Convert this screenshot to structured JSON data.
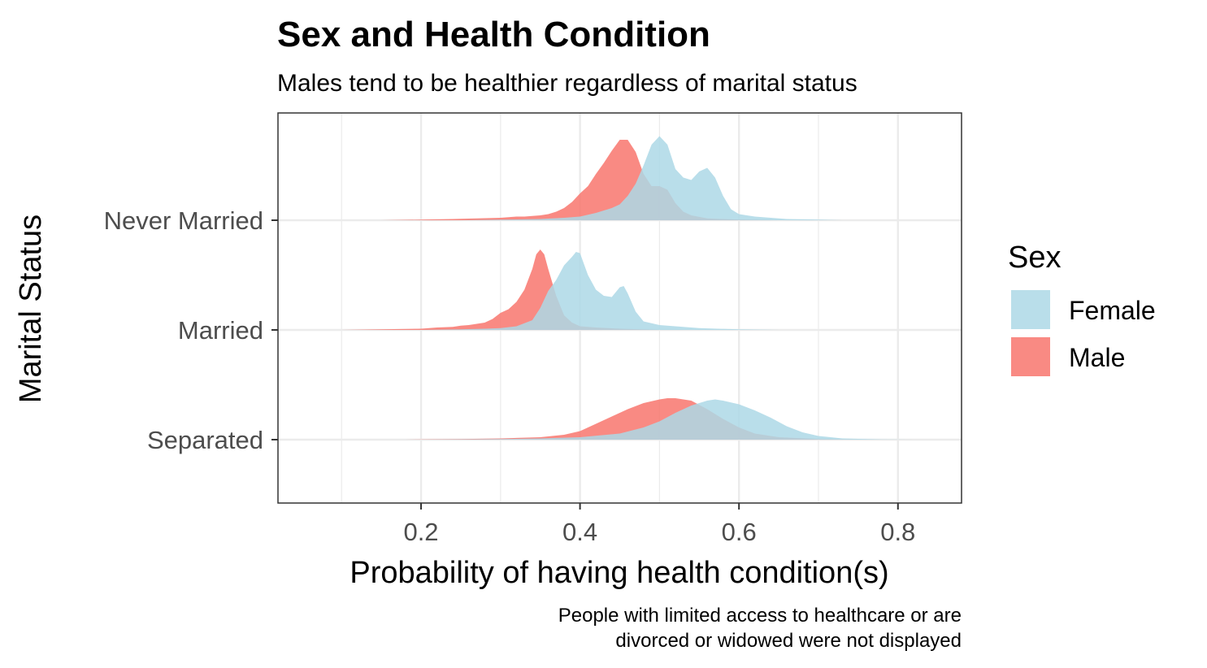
{
  "chart_data": {
    "type": "area",
    "subtype": "ridgeline-density",
    "title": "Sex and Health Condition",
    "subtitle": "Males tend to be healthier regardless of marital status",
    "xlabel": "Probability of having health condition(s)",
    "ylabel": "Marital Status",
    "caption_lines": [
      "People with limited access to healthcare or are",
      "divorced or widowed were not displayed"
    ],
    "xlim": [
      0.02,
      0.88
    ],
    "x_ticks": [
      0.2,
      0.4,
      0.6,
      0.8
    ],
    "x_tick_labels": [
      "0.2",
      "0.4",
      "0.6",
      "0.8"
    ],
    "x_minor_grid": [
      0.1,
      0.3,
      0.5,
      0.7
    ],
    "categories": [
      "Separated",
      "Married",
      "Never Married"
    ],
    "grid": true,
    "legend": {
      "title": "Sex",
      "position": "right",
      "entries": [
        {
          "label": "Female",
          "color": "#ADD8E6"
        },
        {
          "label": "Male",
          "color": "#F8766D"
        }
      ]
    },
    "fill_opacity": 0.85,
    "series": [
      {
        "category": "Never Married",
        "name": "Male",
        "color": "#F8766D",
        "points": [
          [
            0.15,
            0
          ],
          [
            0.2,
            0.005
          ],
          [
            0.24,
            0.01
          ],
          [
            0.27,
            0.015
          ],
          [
            0.3,
            0.02
          ],
          [
            0.31,
            0.025
          ],
          [
            0.32,
            0.03
          ],
          [
            0.33,
            0.03
          ],
          [
            0.34,
            0.035
          ],
          [
            0.35,
            0.04
          ],
          [
            0.36,
            0.05
          ],
          [
            0.37,
            0.07
          ],
          [
            0.38,
            0.1
          ],
          [
            0.39,
            0.15
          ],
          [
            0.4,
            0.22
          ],
          [
            0.41,
            0.28
          ],
          [
            0.42,
            0.38
          ],
          [
            0.43,
            0.47
          ],
          [
            0.44,
            0.57
          ],
          [
            0.45,
            0.66
          ],
          [
            0.46,
            0.66
          ],
          [
            0.47,
            0.56
          ],
          [
            0.48,
            0.38
          ],
          [
            0.49,
            0.28
          ],
          [
            0.5,
            0.28
          ],
          [
            0.51,
            0.25
          ],
          [
            0.52,
            0.14
          ],
          [
            0.53,
            0.07
          ],
          [
            0.54,
            0.04
          ],
          [
            0.56,
            0.015
          ],
          [
            0.6,
            0.005
          ],
          [
            0.65,
            0
          ]
        ]
      },
      {
        "category": "Never Married",
        "name": "Female",
        "color": "#ADD8E6",
        "points": [
          [
            0.25,
            0
          ],
          [
            0.3,
            0.005
          ],
          [
            0.35,
            0.01
          ],
          [
            0.38,
            0.02
          ],
          [
            0.4,
            0.03
          ],
          [
            0.42,
            0.06
          ],
          [
            0.44,
            0.1
          ],
          [
            0.45,
            0.13
          ],
          [
            0.46,
            0.2
          ],
          [
            0.47,
            0.3
          ],
          [
            0.48,
            0.45
          ],
          [
            0.49,
            0.62
          ],
          [
            0.5,
            0.69
          ],
          [
            0.51,
            0.62
          ],
          [
            0.52,
            0.42
          ],
          [
            0.53,
            0.35
          ],
          [
            0.54,
            0.33
          ],
          [
            0.55,
            0.4
          ],
          [
            0.56,
            0.43
          ],
          [
            0.57,
            0.35
          ],
          [
            0.58,
            0.2
          ],
          [
            0.59,
            0.09
          ],
          [
            0.6,
            0.05
          ],
          [
            0.62,
            0.03
          ],
          [
            0.64,
            0.02
          ],
          [
            0.66,
            0.01
          ],
          [
            0.7,
            0.005
          ],
          [
            0.73,
            0
          ]
        ]
      },
      {
        "category": "Married",
        "name": "Male",
        "color": "#F8766D",
        "points": [
          [
            0.1,
            0
          ],
          [
            0.15,
            0.005
          ],
          [
            0.2,
            0.01
          ],
          [
            0.22,
            0.02
          ],
          [
            0.24,
            0.025
          ],
          [
            0.25,
            0.035
          ],
          [
            0.26,
            0.04
          ],
          [
            0.27,
            0.05
          ],
          [
            0.28,
            0.06
          ],
          [
            0.29,
            0.09
          ],
          [
            0.3,
            0.14
          ],
          [
            0.31,
            0.17
          ],
          [
            0.32,
            0.23
          ],
          [
            0.33,
            0.33
          ],
          [
            0.34,
            0.5
          ],
          [
            0.345,
            0.62
          ],
          [
            0.35,
            0.66
          ],
          [
            0.355,
            0.62
          ],
          [
            0.36,
            0.5
          ],
          [
            0.37,
            0.28
          ],
          [
            0.38,
            0.12
          ],
          [
            0.39,
            0.06
          ],
          [
            0.4,
            0.03
          ],
          [
            0.42,
            0.02
          ],
          [
            0.45,
            0.01
          ],
          [
            0.5,
            0
          ]
        ]
      },
      {
        "category": "Married",
        "name": "Female",
        "color": "#ADD8E6",
        "points": [
          [
            0.2,
            0
          ],
          [
            0.25,
            0.005
          ],
          [
            0.28,
            0.01
          ],
          [
            0.3,
            0.015
          ],
          [
            0.32,
            0.03
          ],
          [
            0.34,
            0.08
          ],
          [
            0.35,
            0.18
          ],
          [
            0.36,
            0.32
          ],
          [
            0.37,
            0.41
          ],
          [
            0.38,
            0.53
          ],
          [
            0.39,
            0.6
          ],
          [
            0.395,
            0.64
          ],
          [
            0.4,
            0.63
          ],
          [
            0.41,
            0.45
          ],
          [
            0.42,
            0.33
          ],
          [
            0.43,
            0.28
          ],
          [
            0.44,
            0.27
          ],
          [
            0.45,
            0.35
          ],
          [
            0.455,
            0.36
          ],
          [
            0.46,
            0.3
          ],
          [
            0.47,
            0.15
          ],
          [
            0.48,
            0.07
          ],
          [
            0.5,
            0.04
          ],
          [
            0.52,
            0.03
          ],
          [
            0.55,
            0.015
          ],
          [
            0.6,
            0.005
          ],
          [
            0.65,
            0
          ]
        ]
      },
      {
        "category": "Separated",
        "name": "Male",
        "color": "#F8766D",
        "points": [
          [
            0.18,
            0
          ],
          [
            0.25,
            0.005
          ],
          [
            0.3,
            0.01
          ],
          [
            0.35,
            0.02
          ],
          [
            0.38,
            0.04
          ],
          [
            0.4,
            0.07
          ],
          [
            0.42,
            0.13
          ],
          [
            0.44,
            0.19
          ],
          [
            0.46,
            0.25
          ],
          [
            0.48,
            0.3
          ],
          [
            0.5,
            0.33
          ],
          [
            0.51,
            0.34
          ],
          [
            0.52,
            0.34
          ],
          [
            0.54,
            0.32
          ],
          [
            0.56,
            0.25
          ],
          [
            0.58,
            0.17
          ],
          [
            0.6,
            0.1
          ],
          [
            0.62,
            0.05
          ],
          [
            0.65,
            0.02
          ],
          [
            0.7,
            0.005
          ],
          [
            0.75,
            0
          ]
        ]
      },
      {
        "category": "Separated",
        "name": "Female",
        "color": "#ADD8E6",
        "points": [
          [
            0.2,
            0
          ],
          [
            0.3,
            0.005
          ],
          [
            0.35,
            0.01
          ],
          [
            0.4,
            0.02
          ],
          [
            0.45,
            0.05
          ],
          [
            0.48,
            0.1
          ],
          [
            0.5,
            0.15
          ],
          [
            0.52,
            0.22
          ],
          [
            0.54,
            0.28
          ],
          [
            0.56,
            0.32
          ],
          [
            0.57,
            0.33
          ],
          [
            0.58,
            0.32
          ],
          [
            0.6,
            0.29
          ],
          [
            0.62,
            0.24
          ],
          [
            0.64,
            0.18
          ],
          [
            0.66,
            0.11
          ],
          [
            0.68,
            0.06
          ],
          [
            0.7,
            0.03
          ],
          [
            0.73,
            0.01
          ],
          [
            0.78,
            0.002
          ],
          [
            0.82,
            0
          ]
        ]
      }
    ]
  }
}
